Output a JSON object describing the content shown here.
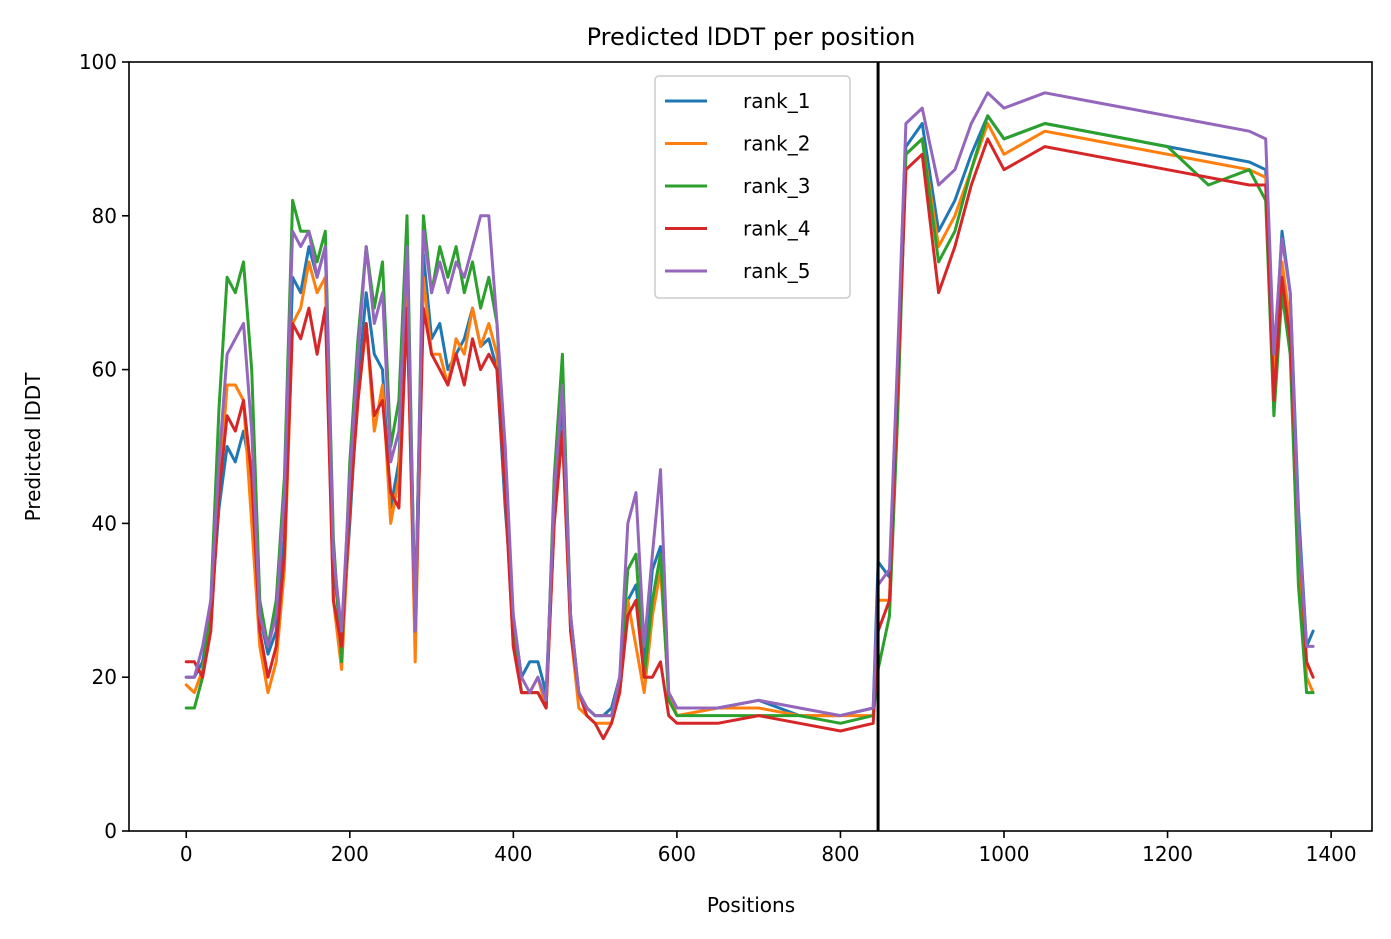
{
  "chart_data": {
    "type": "line",
    "title": "Predicted lDDT per position",
    "xlabel": "Positions",
    "ylabel": "Predicted lDDT",
    "xlim": [
      -70,
      1450
    ],
    "ylim": [
      0,
      100
    ],
    "x_ticks": [
      0,
      200,
      400,
      600,
      800,
      1000,
      1200,
      1400
    ],
    "y_ticks": [
      0,
      20,
      40,
      60,
      80,
      100
    ],
    "x_tick_labels": [
      "0",
      "200",
      "400",
      "600",
      "800",
      "1000",
      "1200",
      "1400"
    ],
    "y_tick_labels": [
      "0",
      "20",
      "40",
      "60",
      "80",
      "100"
    ],
    "grid": false,
    "legend_position": "top-center",
    "vertical_line_x": 846,
    "series": [
      {
        "name": "rank_1",
        "color": "#1f77b4",
        "x": [
          0,
          10,
          20,
          30,
          40,
          50,
          60,
          70,
          80,
          90,
          100,
          110,
          120,
          130,
          140,
          150,
          160,
          170,
          180,
          190,
          200,
          210,
          220,
          230,
          240,
          250,
          260,
          270,
          280,
          290,
          300,
          310,
          320,
          330,
          340,
          350,
          360,
          370,
          380,
          390,
          400,
          410,
          420,
          430,
          440,
          450,
          460,
          470,
          480,
          490,
          500,
          510,
          520,
          530,
          540,
          550,
          560,
          570,
          580,
          590,
          600,
          650,
          700,
          750,
          800,
          840,
          846,
          860,
          870,
          880,
          900,
          920,
          940,
          960,
          980,
          1000,
          1050,
          1100,
          1150,
          1200,
          1250,
          1300,
          1320,
          1330,
          1340,
          1350,
          1360,
          1370,
          1378
        ],
        "y": [
          20,
          20,
          22,
          28,
          42,
          50,
          48,
          52,
          46,
          28,
          23,
          26,
          38,
          72,
          70,
          76,
          72,
          76,
          35,
          24,
          40,
          58,
          70,
          62,
          60,
          42,
          48,
          74,
          28,
          75,
          64,
          66,
          60,
          62,
          64,
          68,
          63,
          64,
          60,
          42,
          28,
          20,
          22,
          22,
          18,
          42,
          56,
          28,
          18,
          16,
          15,
          15,
          16,
          20,
          30,
          32,
          22,
          34,
          37,
          18,
          16,
          16,
          17,
          15,
          15,
          16,
          35,
          33,
          60,
          89,
          92,
          78,
          82,
          88,
          93,
          90,
          92,
          91,
          90,
          89,
          88,
          87,
          86,
          60,
          78,
          70,
          42,
          24,
          26
        ]
      },
      {
        "name": "rank_2",
        "color": "#ff7f0e",
        "x": [
          0,
          10,
          20,
          30,
          40,
          50,
          60,
          70,
          80,
          90,
          100,
          110,
          120,
          130,
          140,
          150,
          160,
          170,
          180,
          190,
          200,
          210,
          220,
          230,
          240,
          250,
          260,
          270,
          280,
          290,
          300,
          310,
          320,
          330,
          340,
          350,
          360,
          370,
          380,
          390,
          400,
          410,
          420,
          430,
          440,
          450,
          460,
          470,
          480,
          490,
          500,
          510,
          520,
          530,
          540,
          550,
          560,
          570,
          580,
          590,
          600,
          650,
          700,
          750,
          800,
          840,
          846,
          860,
          870,
          880,
          900,
          920,
          940,
          960,
          980,
          1000,
          1050,
          1100,
          1150,
          1200,
          1250,
          1300,
          1320,
          1330,
          1340,
          1350,
          1360,
          1370,
          1378
        ],
        "y": [
          19,
          18,
          21,
          27,
          44,
          58,
          58,
          56,
          40,
          24,
          18,
          22,
          34,
          66,
          68,
          74,
          70,
          72,
          30,
          21,
          42,
          56,
          66,
          52,
          58,
          40,
          46,
          70,
          22,
          72,
          62,
          62,
          58,
          64,
          62,
          68,
          63,
          66,
          62,
          44,
          24,
          18,
          18,
          20,
          16,
          40,
          52,
          26,
          16,
          15,
          14,
          14,
          14,
          18,
          30,
          24,
          18,
          28,
          34,
          18,
          15,
          16,
          16,
          15,
          15,
          15,
          30,
          30,
          58,
          88,
          90,
          76,
          80,
          86,
          92,
          88,
          91,
          90,
          89,
          88,
          87,
          86,
          85,
          58,
          74,
          66,
          38,
          20,
          18
        ]
      },
      {
        "name": "rank_3",
        "color": "#2ca02c",
        "x": [
          0,
          10,
          20,
          30,
          40,
          50,
          60,
          70,
          80,
          90,
          100,
          110,
          120,
          130,
          140,
          150,
          160,
          170,
          180,
          190,
          200,
          210,
          220,
          230,
          240,
          250,
          260,
          270,
          280,
          290,
          300,
          310,
          320,
          330,
          340,
          350,
          360,
          370,
          380,
          390,
          400,
          410,
          420,
          430,
          440,
          450,
          460,
          470,
          480,
          490,
          500,
          510,
          520,
          530,
          540,
          550,
          560,
          570,
          580,
          590,
          600,
          650,
          700,
          750,
          800,
          840,
          846,
          860,
          870,
          880,
          900,
          920,
          940,
          960,
          980,
          1000,
          1050,
          1100,
          1150,
          1200,
          1250,
          1300,
          1320,
          1330,
          1340,
          1350,
          1360,
          1370,
          1378
        ],
        "y": [
          16,
          16,
          20,
          30,
          55,
          72,
          70,
          74,
          60,
          30,
          24,
          30,
          46,
          82,
          78,
          78,
          74,
          78,
          38,
          22,
          48,
          64,
          76,
          68,
          74,
          50,
          56,
          80,
          26,
          80,
          70,
          76,
          72,
          76,
          70,
          74,
          68,
          72,
          66,
          46,
          26,
          18,
          18,
          18,
          16,
          46,
          62,
          28,
          18,
          16,
          15,
          15,
          15,
          19,
          34,
          36,
          20,
          30,
          36,
          17,
          15,
          15,
          15,
          15,
          14,
          15,
          21,
          28,
          54,
          88,
          90,
          74,
          78,
          86,
          93,
          90,
          92,
          91,
          90,
          89,
          84,
          86,
          82,
          54,
          70,
          62,
          32,
          18,
          18
        ]
      },
      {
        "name": "rank_4",
        "color": "#d62728",
        "x": [
          0,
          10,
          20,
          30,
          40,
          50,
          60,
          70,
          80,
          90,
          100,
          110,
          120,
          130,
          140,
          150,
          160,
          170,
          180,
          190,
          200,
          210,
          220,
          230,
          240,
          250,
          260,
          270,
          280,
          290,
          300,
          310,
          320,
          330,
          340,
          350,
          360,
          370,
          380,
          390,
          400,
          410,
          420,
          430,
          440,
          450,
          460,
          470,
          480,
          490,
          500,
          510,
          520,
          530,
          540,
          550,
          560,
          570,
          580,
          590,
          600,
          650,
          700,
          750,
          800,
          840,
          846,
          860,
          870,
          880,
          900,
          920,
          940,
          960,
          980,
          1000,
          1050,
          1100,
          1150,
          1200,
          1250,
          1300,
          1320,
          1330,
          1340,
          1350,
          1360,
          1370,
          1378
        ],
        "y": [
          22,
          22,
          20,
          26,
          44,
          54,
          52,
          56,
          46,
          26,
          20,
          24,
          36,
          66,
          64,
          68,
          62,
          68,
          30,
          24,
          42,
          56,
          66,
          54,
          56,
          44,
          42,
          68,
          26,
          68,
          62,
          60,
          58,
          62,
          58,
          64,
          60,
          62,
          60,
          44,
          24,
          18,
          18,
          18,
          16,
          40,
          52,
          26,
          18,
          15,
          14,
          12,
          14,
          18,
          28,
          30,
          20,
          20,
          22,
          15,
          14,
          14,
          15,
          14,
          13,
          14,
          26,
          30,
          58,
          86,
          88,
          70,
          76,
          84,
          90,
          86,
          89,
          88,
          87,
          86,
          85,
          84,
          84,
          56,
          72,
          64,
          40,
          22,
          20
        ]
      },
      {
        "name": "rank_5",
        "color": "#9467bd",
        "x": [
          0,
          10,
          20,
          30,
          40,
          50,
          60,
          70,
          80,
          90,
          100,
          110,
          120,
          130,
          140,
          150,
          160,
          170,
          180,
          190,
          200,
          210,
          220,
          230,
          240,
          250,
          260,
          270,
          280,
          290,
          300,
          310,
          320,
          330,
          340,
          350,
          360,
          370,
          380,
          390,
          400,
          410,
          420,
          430,
          440,
          450,
          460,
          470,
          480,
          490,
          500,
          510,
          520,
          530,
          540,
          550,
          560,
          570,
          580,
          590,
          600,
          650,
          700,
          750,
          800,
          840,
          846,
          860,
          870,
          880,
          900,
          920,
          940,
          960,
          980,
          1000,
          1050,
          1100,
          1150,
          1200,
          1250,
          1300,
          1320,
          1330,
          1340,
          1350,
          1360,
          1370,
          1378
        ],
        "y": [
          20,
          20,
          24,
          30,
          48,
          62,
          64,
          66,
          52,
          28,
          24,
          28,
          44,
          78,
          76,
          78,
          72,
          76,
          36,
          26,
          46,
          62,
          76,
          66,
          70,
          48,
          52,
          76,
          26,
          78,
          70,
          74,
          70,
          74,
          72,
          76,
          80,
          80,
          66,
          50,
          28,
          20,
          18,
          20,
          17,
          44,
          58,
          28,
          18,
          16,
          15,
          15,
          15,
          20,
          40,
          44,
          24,
          36,
          47,
          18,
          16,
          16,
          17,
          16,
          15,
          16,
          32,
          34,
          62,
          92,
          94,
          84,
          86,
          92,
          96,
          94,
          96,
          95,
          94,
          93,
          92,
          91,
          90,
          62,
          77,
          70,
          40,
          24,
          24
        ]
      }
    ]
  }
}
